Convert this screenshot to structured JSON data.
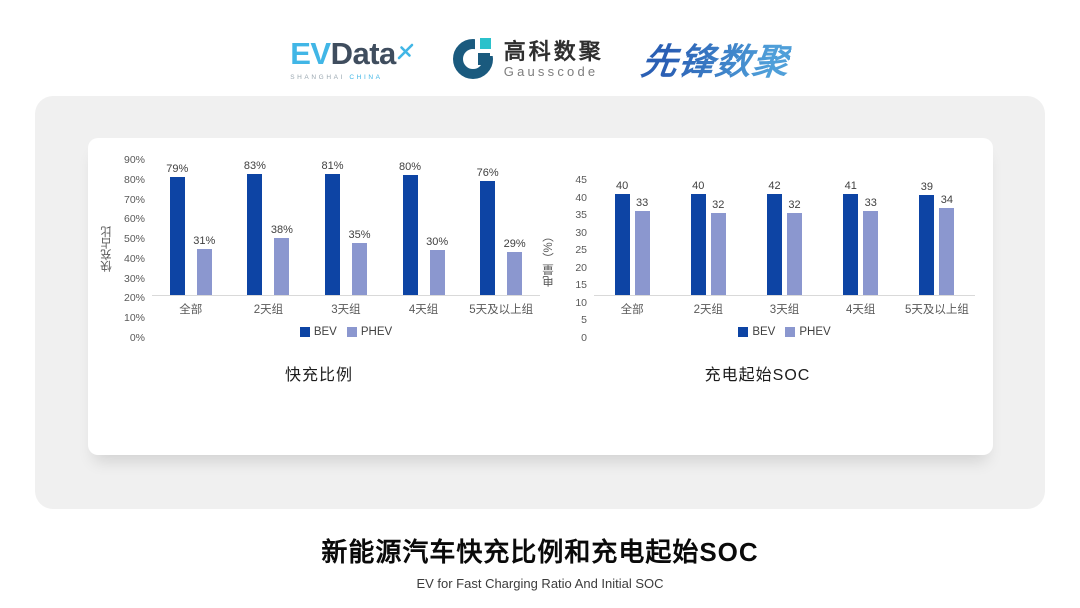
{
  "header": {
    "logos": {
      "evdata": {
        "part1": "EV",
        "part2": "Data",
        "sub1": "SHANGHAI",
        "sub2": "CHINA"
      },
      "gausscode": {
        "name_cn": "高科数聚",
        "name_en": "Gausscode"
      },
      "pioneer": {
        "name": "先锋数聚"
      }
    }
  },
  "colors": {
    "bev": "#0d44a4",
    "phev": "#8b97cf",
    "axis_line": "#d9d9d9",
    "tick_text": "#595959",
    "value_text": "#404040",
    "panel_bg": "#f0f0f0",
    "card_bg": "#ffffff",
    "evdata_blue": "#41b6e6",
    "evdata_dark": "#3f4d5e",
    "gauss_dark": "#1a5a7e",
    "gauss_cyan": "#2bc1cb",
    "pioneer_blue": "#2e72c4"
  },
  "chart_data": [
    {
      "type": "bar",
      "title": "快充比例",
      "ylabel": "快充占比",
      "categories": [
        "全部",
        "2天组",
        "3天组",
        "4天组",
        "5天及以上组"
      ],
      "series": [
        {
          "name": "BEV",
          "color": "#0d44a4",
          "values": [
            79,
            83,
            81,
            80,
            76
          ]
        },
        {
          "name": "PHEV",
          "color": "#8b97cf",
          "values": [
            31,
            38,
            35,
            30,
            29
          ]
        }
      ],
      "ylim": [
        0,
        90
      ],
      "ytick_step": 10,
      "tick_suffix": "%",
      "value_suffix": "%",
      "grid": false,
      "legend_position": "bottom"
    },
    {
      "type": "bar",
      "title": "充电起始SOC",
      "ylabel": "电量（%）",
      "categories": [
        "全部",
        "2天组",
        "3天组",
        "4天组",
        "5天及以上组"
      ],
      "series": [
        {
          "name": "BEV",
          "color": "#0d44a4",
          "values": [
            40,
            40,
            42,
            41,
            39
          ]
        },
        {
          "name": "PHEV",
          "color": "#8b97cf",
          "values": [
            33,
            32,
            32,
            33,
            34
          ]
        }
      ],
      "ylim": [
        0,
        45
      ],
      "ytick_step": 5,
      "tick_suffix": "",
      "value_suffix": "",
      "grid": false,
      "legend_position": "bottom"
    }
  ],
  "footer": {
    "title": "新能源汽车快充比例和充电起始SOC",
    "subtitle": "EV for Fast Charging Ratio And Initial SOC"
  }
}
